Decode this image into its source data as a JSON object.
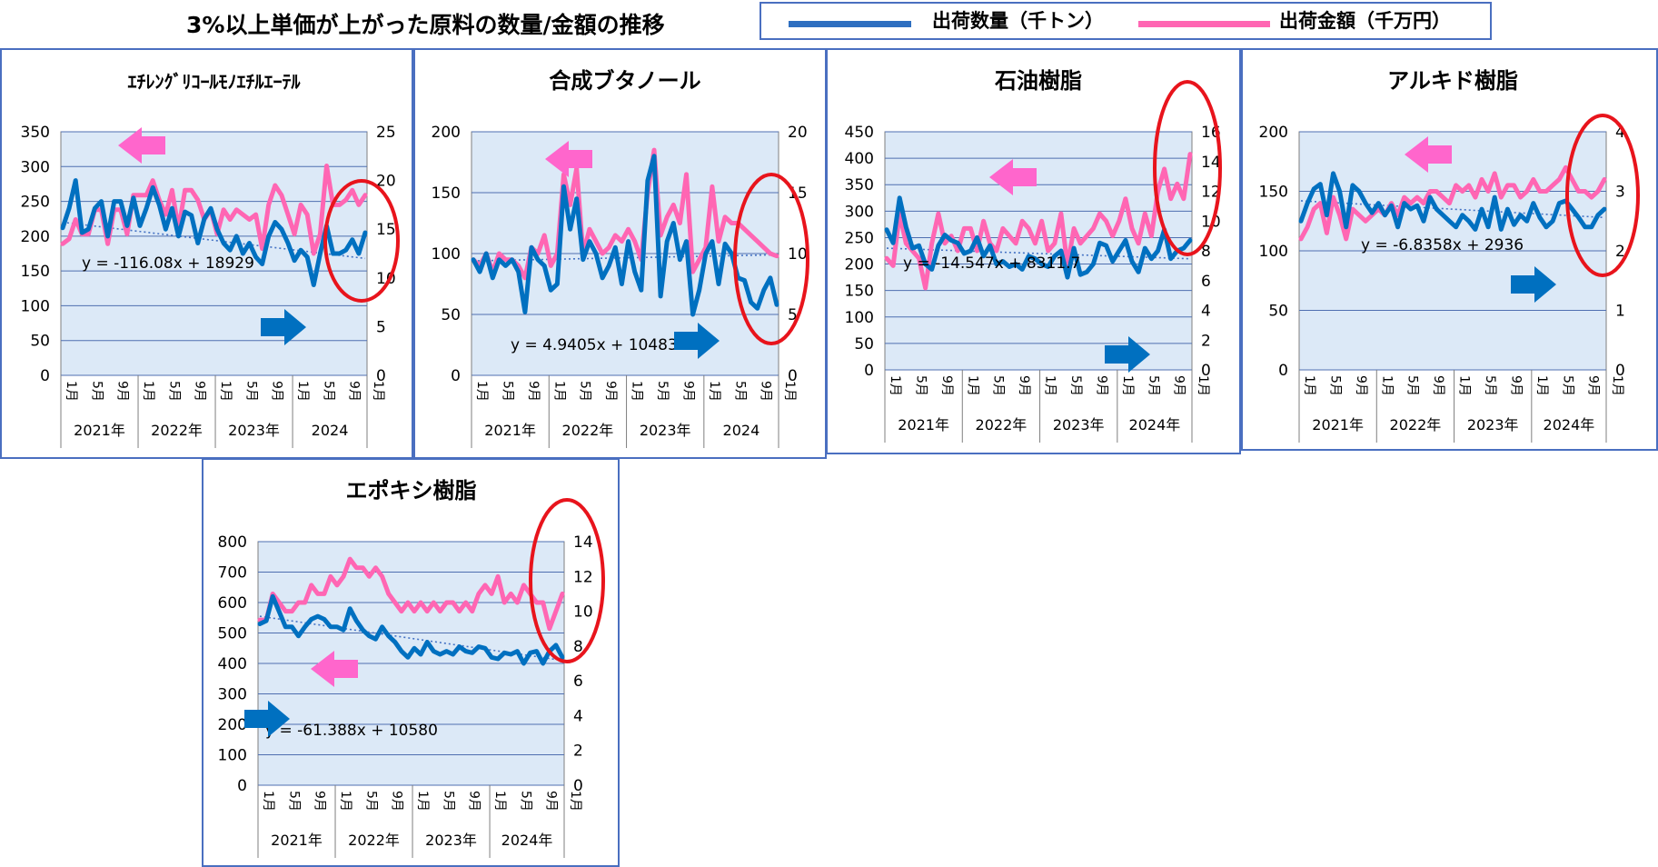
{
  "header": {
    "title": "3%以上単価が上がった原料の数量/金額の推移",
    "legend": [
      {
        "label": "出荷数量（千トン）",
        "color": "#2e6fc0"
      },
      {
        "label": "出荷金額（千万円）",
        "color": "#ff66b3"
      }
    ]
  },
  "colors": {
    "quantity_line": "#0070c0",
    "amount_line": "#ff66b3",
    "plot_bg": "#dce9f7",
    "trend": "#4472c4",
    "highlight_circle": "#e8141c",
    "arrow_left": "#ff66cc",
    "arrow_right": "#0070c0"
  },
  "chart_data": [
    {
      "type": "line",
      "title": "ｴﾁﾚﾝｸﾞﾘｺｰﾙﾓﾉｴﾁﾙｴｰﾃﾙ",
      "month_ticks": [
        "1月",
        "5月",
        "9月",
        "1月",
        "5月",
        "9月",
        "1月",
        "5月",
        "9月",
        "1月",
        "5月",
        "9月",
        "1月"
      ],
      "year_labels": [
        "2021年",
        "2022年",
        "2023年",
        "2024"
      ],
      "left_axis": {
        "min": 0,
        "max": 350,
        "ticks": [
          0,
          50,
          100,
          150,
          200,
          250,
          300,
          350
        ]
      },
      "right_axis": {
        "min": 0,
        "max": 25,
        "ticks": [
          0,
          5,
          10,
          15,
          20,
          25
        ]
      },
      "trendline": {
        "label": "y = -116.08x + 18929",
        "start": 220,
        "end": 168
      },
      "series": [
        {
          "role": "quantity",
          "axis": "left",
          "values": [
            212,
            240,
            280,
            205,
            210,
            240,
            250,
            200,
            250,
            250,
            215,
            255,
            215,
            240,
            270,
            245,
            210,
            240,
            200,
            235,
            230,
            190,
            225,
            240,
            210,
            190,
            180,
            200,
            175,
            190,
            170,
            160,
            200,
            220,
            210,
            190,
            165,
            180,
            170,
            130,
            175,
            215,
            175,
            175,
            180,
            195,
            175,
            205
          ]
        },
        {
          "role": "amount",
          "axis": "right",
          "values": [
            13.5,
            14,
            16,
            14.5,
            14.5,
            17,
            17,
            13.5,
            17,
            17,
            14.5,
            18.5,
            18.5,
            18.5,
            20,
            18,
            16.5,
            19,
            15,
            19,
            19,
            18,
            16,
            17,
            14.5,
            17,
            16,
            17,
            16.5,
            16,
            16.5,
            13,
            17.5,
            19.5,
            18.5,
            16.5,
            14.5,
            17.5,
            16.5,
            12.5,
            14.5,
            21.5,
            17.5,
            17.5,
            18,
            19,
            17.5,
            18.5
          ]
        }
      ]
    },
    {
      "type": "line",
      "title": "合成ブタノール",
      "month_ticks": [
        "1月",
        "5月",
        "9月",
        "1月",
        "5月",
        "9月",
        "1月",
        "5月",
        "9月",
        "1月",
        "5月",
        "9月",
        "1月"
      ],
      "year_labels": [
        "2021年",
        "2022年",
        "2023年",
        "2024"
      ],
      "left_axis": {
        "min": 0,
        "max": 200,
        "ticks": [
          0,
          50,
          100,
          150,
          200
        ]
      },
      "right_axis": {
        "min": 0,
        "max": 20,
        "ticks": [
          0,
          5,
          10,
          15,
          20
        ]
      },
      "trendline": {
        "label": "y = 4.9405x + 10483",
        "start": 94,
        "end": 99
      },
      "series": [
        {
          "role": "quantity",
          "axis": "left",
          "values": [
            95,
            85,
            100,
            80,
            95,
            90,
            95,
            85,
            52,
            105,
            95,
            90,
            70,
            75,
            155,
            120,
            145,
            95,
            110,
            100,
            80,
            90,
            105,
            75,
            110,
            85,
            70,
            160,
            180,
            65,
            110,
            125,
            95,
            110,
            50,
            70,
            100,
            110,
            75,
            108,
            100,
            80,
            78,
            60,
            55,
            70,
            80,
            58
          ]
        },
        {
          "role": "amount",
          "axis": "right",
          "values": [
            9.5,
            9,
            10,
            8.5,
            10,
            9.5,
            9.5,
            9,
            8,
            10.5,
            10,
            11.5,
            9,
            10,
            16.5,
            14,
            17,
            10,
            12,
            11,
            10,
            10.5,
            11.5,
            11,
            12,
            11,
            9.5,
            15,
            18.5,
            11.5,
            13,
            14,
            12.5,
            16.5,
            8.5,
            9.5,
            10.5,
            15.5,
            11,
            13,
            12.5,
            12.5,
            12,
            11.5,
            11,
            10.5,
            10,
            9.8
          ]
        }
      ]
    },
    {
      "type": "line",
      "title": "石油樹脂",
      "month_ticks": [
        "1月",
        "5月",
        "9月",
        "1月",
        "5月",
        "9月",
        "1月",
        "5月",
        "9月",
        "1月",
        "5月",
        "9月",
        "1月"
      ],
      "year_labels": [
        "2021年",
        "2022年",
        "2023年",
        "2024年"
      ],
      "left_axis": {
        "min": 0,
        "max": 450,
        "ticks": [
          0,
          50,
          100,
          150,
          200,
          250,
          300,
          350,
          400,
          450
        ]
      },
      "right_axis": {
        "min": 0,
        "max": 16,
        "ticks": [
          0,
          2,
          4,
          6,
          8,
          10,
          12,
          14,
          16
        ]
      },
      "trendline": {
        "label": "y = -14.547x + 8311.7",
        "start": 230,
        "end": 210
      },
      "series": [
        {
          "role": "quantity",
          "axis": "left",
          "values": [
            265,
            240,
            325,
            270,
            230,
            235,
            200,
            190,
            235,
            255,
            245,
            240,
            220,
            225,
            250,
            215,
            235,
            200,
            205,
            195,
            200,
            190,
            215,
            210,
            200,
            195,
            215,
            225,
            175,
            230,
            180,
            185,
            200,
            240,
            235,
            205,
            225,
            245,
            205,
            185,
            230,
            210,
            225,
            265,
            210,
            225,
            230,
            245
          ]
        },
        {
          "role": "amount",
          "axis": "right",
          "values": [
            7.5,
            7,
            10.5,
            8.5,
            8,
            7.5,
            5.5,
            8.5,
            10.5,
            8.5,
            9,
            8,
            9.5,
            9.5,
            8,
            10,
            8.5,
            8,
            9.5,
            9,
            8.5,
            10,
            9.5,
            8.5,
            10,
            8,
            8.5,
            10.5,
            7,
            9.5,
            8.5,
            9,
            9.5,
            10.5,
            10,
            9,
            10,
            11.5,
            9.5,
            8.5,
            10.5,
            9,
            12,
            13.5,
            11.5,
            12.5,
            11.5,
            14.5
          ]
        }
      ]
    },
    {
      "type": "line",
      "title": "アルキド樹脂",
      "month_ticks": [
        "1月",
        "5月",
        "9月",
        "1月",
        "5月",
        "9月",
        "1月",
        "5月",
        "9月",
        "1月",
        "5月",
        "9月",
        "1月"
      ],
      "year_labels": [
        "2021年",
        "2022年",
        "2023年",
        "2024年"
      ],
      "left_axis": {
        "min": 0,
        "max": 200,
        "ticks": [
          0,
          50,
          100,
          150,
          200
        ]
      },
      "right_axis": {
        "min": 0,
        "max": 4,
        "ticks": [
          0,
          1,
          2,
          3,
          4
        ]
      },
      "trendline": {
        "label": "y = -6.8358x + 2936",
        "start": 142,
        "end": 128
      },
      "series": [
        {
          "role": "quantity",
          "axis": "left",
          "values": [
            125,
            140,
            152,
            156,
            130,
            165,
            150,
            120,
            155,
            150,
            140,
            132,
            140,
            130,
            138,
            120,
            140,
            135,
            138,
            125,
            145,
            135,
            130,
            125,
            120,
            130,
            125,
            118,
            135,
            120,
            145,
            118,
            135,
            122,
            130,
            125,
            140,
            128,
            120,
            125,
            140,
            142,
            135,
            128,
            120,
            120,
            130,
            135
          ]
        },
        {
          "role": "amount",
          "axis": "right",
          "values": [
            2.2,
            2.4,
            2.7,
            2.8,
            2.3,
            2.9,
            2.6,
            2.2,
            2.7,
            2.6,
            2.5,
            2.6,
            2.7,
            2.6,
            2.8,
            2.6,
            2.9,
            2.8,
            2.9,
            2.8,
            3,
            3,
            2.9,
            2.8,
            3.1,
            3.0,
            3.1,
            2.9,
            3.2,
            3.0,
            3.3,
            2.9,
            3.1,
            3.1,
            2.9,
            3.0,
            3.2,
            3.0,
            3.0,
            3.1,
            3.2,
            3.4,
            3.2,
            3.0,
            3.0,
            2.9,
            3.0,
            3.2
          ]
        }
      ]
    },
    {
      "type": "line",
      "title": "エポキシ樹脂",
      "month_ticks": [
        "1月",
        "5月",
        "9月",
        "1月",
        "5月",
        "9月",
        "1月",
        "5月",
        "9月",
        "1月",
        "5月",
        "9月",
        "1月"
      ],
      "year_labels": [
        "2021年",
        "2022年",
        "2023年",
        "2024年"
      ],
      "left_axis": {
        "min": 0,
        "max": 800,
        "ticks": [
          0,
          100,
          200,
          300,
          400,
          500,
          600,
          700,
          800
        ]
      },
      "right_axis": {
        "min": 0,
        "max": 14,
        "ticks": [
          0,
          2,
          4,
          6,
          8,
          10,
          12,
          14
        ]
      },
      "trendline": {
        "label": "y = -61.388x + 10580",
        "start": 555,
        "end": 410
      },
      "series": [
        {
          "role": "quantity",
          "axis": "left",
          "values": [
            530,
            540,
            620,
            570,
            520,
            520,
            490,
            520,
            545,
            555,
            545,
            520,
            520,
            510,
            580,
            540,
            510,
            490,
            480,
            520,
            490,
            470,
            440,
            420,
            450,
            430,
            470,
            440,
            430,
            440,
            430,
            455,
            440,
            435,
            455,
            450,
            420,
            415,
            435,
            430,
            440,
            400,
            435,
            440,
            400,
            440,
            460,
            420
          ]
        },
        {
          "role": "amount",
          "axis": "right",
          "values": [
            9.5,
            9.5,
            11,
            10.5,
            10,
            10,
            10.5,
            10.5,
            11.5,
            11,
            11,
            12,
            11.5,
            12,
            13,
            12.5,
            12.5,
            12,
            12.5,
            12,
            11,
            10.5,
            10,
            10.5,
            10,
            10.5,
            10,
            10.5,
            10,
            10.5,
            10.5,
            10,
            10.5,
            10,
            11,
            11.5,
            11,
            12,
            10.5,
            11,
            10.5,
            11.5,
            11,
            10.5,
            10.5,
            9,
            10,
            11
          ]
        }
      ]
    }
  ]
}
